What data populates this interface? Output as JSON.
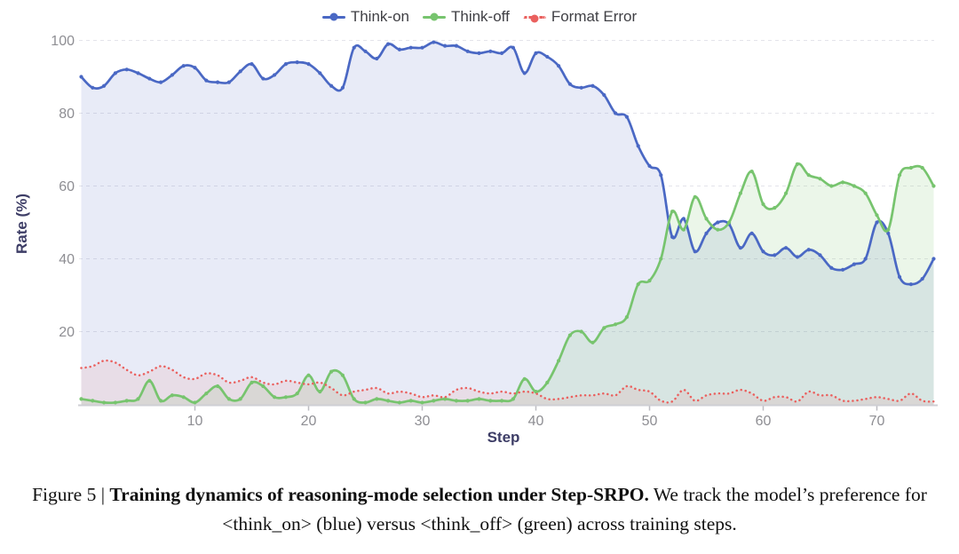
{
  "legend": {
    "items": [
      "Think-on",
      "Think-off",
      "Format Error"
    ]
  },
  "caption": {
    "figure_label": "Figure 5",
    "separator": " | ",
    "bold": "Training dynamics of reasoning-mode selection under Step-SRPO.",
    "rest": " We track the model’s preference for <think_on> (blue) versus <think_off> (green) across training steps."
  },
  "chart_data": {
    "type": "area",
    "title": "",
    "xlabel": "Step",
    "ylabel": "Rate (%)",
    "xlim": [
      0,
      76
    ],
    "ylim": [
      0,
      103
    ],
    "xticks": [
      10,
      20,
      30,
      40,
      50,
      60,
      70
    ],
    "yticks": [
      20,
      40,
      60,
      80,
      100
    ],
    "grid": "horizontal-dashed",
    "legend_position": "top-center",
    "x": [
      0,
      1,
      2,
      3,
      4,
      5,
      6,
      7,
      8,
      9,
      10,
      11,
      12,
      13,
      14,
      15,
      16,
      17,
      18,
      19,
      20,
      21,
      22,
      23,
      24,
      25,
      26,
      27,
      28,
      29,
      30,
      31,
      32,
      33,
      34,
      35,
      36,
      37,
      38,
      39,
      40,
      41,
      42,
      43,
      44,
      45,
      46,
      47,
      48,
      49,
      50,
      51,
      52,
      53,
      54,
      55,
      56,
      57,
      58,
      59,
      60,
      61,
      62,
      63,
      64,
      65,
      66,
      67,
      68,
      69,
      70,
      71,
      72,
      73,
      74,
      75
    ],
    "series": [
      {
        "name": "Think-on",
        "color": "#4a68c4",
        "fill": "rgba(74,104,196,0.13)",
        "style": "solid",
        "markers": true,
        "values": [
          90,
          87,
          87.5,
          91,
          92,
          91,
          89.5,
          88.5,
          90.5,
          93,
          92.5,
          89,
          88.5,
          88.5,
          91.5,
          93.5,
          89.5,
          90.5,
          93.5,
          94,
          93.5,
          91,
          87.5,
          87,
          98,
          97,
          95,
          99,
          97.5,
          98,
          98,
          99.5,
          98.5,
          98.5,
          97,
          96.5,
          97,
          96.5,
          98,
          91,
          96.5,
          95.5,
          93,
          88,
          87,
          87.5,
          85,
          80,
          79,
          71,
          65.5,
          63,
          46,
          51,
          42,
          47,
          50,
          49.5,
          43,
          47,
          42,
          41,
          43,
          40.5,
          42.5,
          41,
          37.5,
          37,
          38.5,
          40,
          50,
          47,
          35,
          33,
          34.5,
          40
        ]
      },
      {
        "name": "Think-off",
        "color": "#77c46e",
        "fill": "rgba(119,196,110,0.15)",
        "style": "solid",
        "markers": true,
        "values": [
          1.5,
          1,
          0.5,
          0.5,
          1,
          1.5,
          6.5,
          1,
          2.5,
          2,
          0.5,
          3,
          5,
          1.5,
          1.5,
          6,
          5,
          2,
          2,
          3,
          8,
          3.5,
          9,
          8,
          1.5,
          0.5,
          1.5,
          1,
          0.5,
          1,
          0.5,
          1,
          1.5,
          1,
          1,
          1.5,
          1,
          1,
          1.5,
          7,
          3.5,
          6,
          12,
          19,
          20,
          17,
          21,
          22,
          24,
          33,
          34,
          40,
          53,
          48,
          57,
          51,
          48,
          50,
          58,
          64,
          55,
          54,
          58,
          66,
          63,
          62,
          60,
          61,
          60,
          58,
          52,
          48,
          63,
          65,
          65,
          60
        ]
      },
      {
        "name": "Format Error",
        "color": "#ea605e",
        "fill": "rgba(234,96,94,0.10)",
        "style": "dotted",
        "markers": false,
        "values": [
          10,
          10.5,
          12,
          11.5,
          9.5,
          8,
          9,
          10.5,
          9.5,
          7.5,
          7,
          8.5,
          8,
          6,
          6.5,
          7.5,
          6,
          5.5,
          6.5,
          6,
          5.5,
          6,
          4.5,
          2.5,
          3.5,
          4,
          4.5,
          3,
          3.5,
          3,
          2,
          2.5,
          2,
          4,
          4.5,
          3.5,
          3,
          3.5,
          3,
          3.5,
          3,
          1.5,
          1.5,
          2,
          2.5,
          2.5,
          3,
          2.5,
          5,
          4,
          3.5,
          1,
          0.8,
          4,
          1,
          2.5,
          3,
          3,
          4,
          3,
          1,
          2,
          2,
          0.8,
          3.5,
          2.5,
          2.5,
          1,
          1,
          1.5,
          2,
          1.5,
          1,
          3,
          1,
          0.8
        ]
      }
    ]
  }
}
